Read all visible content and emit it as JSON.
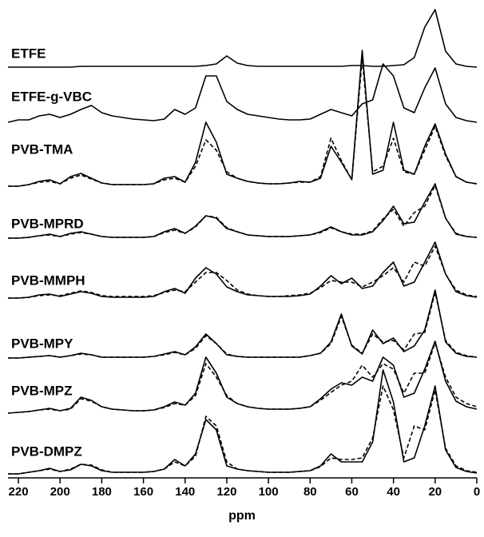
{
  "chart_data": {
    "type": "line",
    "xlabel": "ppm",
    "xlim": [
      225,
      0
    ],
    "xticks": [
      220,
      200,
      180,
      160,
      140,
      120,
      100,
      80,
      60,
      40,
      20,
      0
    ],
    "color": "#000000",
    "x": [
      225,
      220,
      215,
      210,
      205,
      200,
      195,
      190,
      185,
      180,
      175,
      170,
      165,
      160,
      155,
      150,
      145,
      140,
      135,
      130,
      125,
      120,
      115,
      110,
      105,
      100,
      95,
      90,
      85,
      80,
      75,
      70,
      65,
      60,
      55,
      50,
      45,
      40,
      35,
      30,
      25,
      20,
      15,
      10,
      5,
      0
    ],
    "series": [
      {
        "name": "ETFE",
        "values": [
          0,
          0,
          0,
          0,
          0,
          0,
          0,
          1,
          1,
          1,
          1,
          1,
          1,
          1,
          1,
          1,
          1,
          1,
          1,
          2,
          4,
          14,
          5,
          2,
          1,
          1,
          1,
          1,
          1,
          1,
          1,
          1,
          1,
          2,
          2,
          1,
          1,
          2,
          3,
          12,
          50,
          72,
          20,
          4,
          1,
          0
        ]
      },
      {
        "name": "ETFE-g-VBC",
        "values": [
          2,
          5,
          5,
          10,
          12,
          8,
          12,
          18,
          23,
          14,
          10,
          8,
          6,
          5,
          4,
          6,
          18,
          12,
          20,
          60,
          60,
          28,
          18,
          12,
          10,
          8,
          6,
          5,
          5,
          6,
          12,
          18,
          14,
          10,
          25,
          30,
          75,
          60,
          20,
          14,
          45,
          70,
          25,
          8,
          4,
          2
        ]
      },
      {
        "name": "PVB-TMA",
        "values": [
          0,
          0,
          2,
          6,
          8,
          3,
          12,
          16,
          10,
          4,
          2,
          2,
          2,
          2,
          3,
          10,
          12,
          5,
          30,
          80,
          55,
          15,
          10,
          6,
          4,
          3,
          3,
          4,
          6,
          5,
          10,
          50,
          30,
          8,
          170,
          15,
          20,
          80,
          20,
          15,
          50,
          78,
          40,
          12,
          5,
          3
        ],
        "dashed_values": [
          0,
          0,
          2,
          5,
          6,
          3,
          10,
          14,
          9,
          4,
          2,
          2,
          2,
          2,
          3,
          8,
          10,
          5,
          25,
          58,
          45,
          18,
          10,
          6,
          4,
          3,
          3,
          4,
          5,
          5,
          12,
          60,
          32,
          8,
          160,
          18,
          25,
          60,
          18,
          15,
          45,
          75,
          38,
          12,
          5,
          3
        ]
      },
      {
        "name": "PVB-MPRD",
        "values": [
          0,
          0,
          1,
          3,
          5,
          2,
          6,
          8,
          5,
          2,
          1,
          1,
          1,
          1,
          2,
          8,
          12,
          6,
          15,
          28,
          25,
          12,
          8,
          4,
          3,
          2,
          2,
          2,
          3,
          4,
          8,
          14,
          8,
          4,
          4,
          8,
          22,
          40,
          18,
          20,
          45,
          68,
          25,
          5,
          2,
          1
        ],
        "dashed_values": [
          0,
          0,
          1,
          3,
          4,
          2,
          5,
          7,
          5,
          2,
          1,
          1,
          1,
          1,
          2,
          7,
          10,
          6,
          14,
          28,
          26,
          13,
          8,
          4,
          3,
          2,
          2,
          2,
          3,
          4,
          7,
          13,
          8,
          5,
          5,
          9,
          24,
          36,
          15,
          32,
          40,
          66,
          25,
          6,
          2,
          1
        ]
      },
      {
        "name": "PVB-MMPH",
        "values": [
          0,
          0,
          1,
          4,
          5,
          2,
          5,
          8,
          6,
          2,
          1,
          1,
          1,
          1,
          2,
          8,
          12,
          6,
          25,
          38,
          30,
          14,
          8,
          4,
          3,
          2,
          2,
          2,
          3,
          5,
          15,
          28,
          18,
          25,
          12,
          15,
          32,
          45,
          15,
          20,
          45,
          70,
          30,
          8,
          3,
          1
        ],
        "dashed_values": [
          0,
          0,
          1,
          3,
          4,
          3,
          6,
          9,
          7,
          3,
          2,
          2,
          2,
          2,
          3,
          7,
          10,
          8,
          20,
          32,
          32,
          22,
          10,
          5,
          3,
          2,
          2,
          3,
          4,
          6,
          13,
          22,
          20,
          20,
          14,
          20,
          28,
          38,
          20,
          45,
          40,
          65,
          30,
          10,
          4,
          2
        ]
      },
      {
        "name": "PVB-MPY",
        "values": [
          0,
          0,
          1,
          2,
          3,
          1,
          3,
          6,
          4,
          1,
          1,
          1,
          1,
          1,
          2,
          5,
          8,
          4,
          14,
          30,
          18,
          4,
          2,
          1,
          1,
          1,
          1,
          1,
          1,
          3,
          6,
          20,
          55,
          15,
          5,
          35,
          18,
          25,
          8,
          15,
          35,
          85,
          20,
          6,
          2,
          1
        ],
        "dashed_values": [
          0,
          0,
          1,
          2,
          3,
          1,
          3,
          5,
          4,
          1,
          1,
          1,
          1,
          1,
          2,
          4,
          7,
          4,
          12,
          28,
          18,
          5,
          2,
          1,
          1,
          1,
          1,
          1,
          1,
          3,
          6,
          18,
          52,
          16,
          6,
          30,
          20,
          22,
          10,
          30,
          32,
          82,
          22,
          7,
          3,
          1
        ]
      },
      {
        "name": "PVB-MPZ",
        "values": [
          0,
          1,
          2,
          4,
          6,
          3,
          6,
          20,
          16,
          8,
          5,
          4,
          3,
          3,
          4,
          8,
          14,
          10,
          25,
          70,
          50,
          20,
          12,
          8,
          6,
          5,
          5,
          5,
          6,
          8,
          18,
          30,
          38,
          35,
          45,
          40,
          70,
          60,
          20,
          25,
          55,
          90,
          40,
          15,
          8,
          5
        ],
        "dashed_values": [
          0,
          1,
          2,
          4,
          5,
          3,
          5,
          18,
          15,
          8,
          5,
          4,
          3,
          3,
          4,
          7,
          12,
          10,
          22,
          62,
          45,
          22,
          12,
          8,
          6,
          5,
          5,
          5,
          6,
          8,
          16,
          26,
          35,
          40,
          60,
          45,
          62,
          55,
          25,
          50,
          50,
          88,
          45,
          20,
          12,
          8
        ]
      },
      {
        "name": "PVB-DMPZ",
        "values": [
          0,
          0,
          2,
          4,
          7,
          3,
          5,
          12,
          10,
          4,
          2,
          2,
          2,
          2,
          3,
          6,
          18,
          10,
          25,
          68,
          55,
          10,
          6,
          4,
          3,
          2,
          2,
          2,
          3,
          4,
          10,
          25,
          15,
          15,
          15,
          40,
          130,
          90,
          15,
          20,
          60,
          110,
          30,
          8,
          3,
          1
        ],
        "dashed_values": [
          0,
          0,
          2,
          4,
          6,
          3,
          6,
          12,
          11,
          5,
          2,
          2,
          2,
          2,
          3,
          6,
          15,
          10,
          22,
          72,
          60,
          15,
          6,
          4,
          3,
          2,
          2,
          2,
          3,
          4,
          9,
          20,
          18,
          18,
          20,
          45,
          110,
          80,
          20,
          60,
          55,
          105,
          32,
          10,
          4,
          2
        ]
      }
    ]
  }
}
